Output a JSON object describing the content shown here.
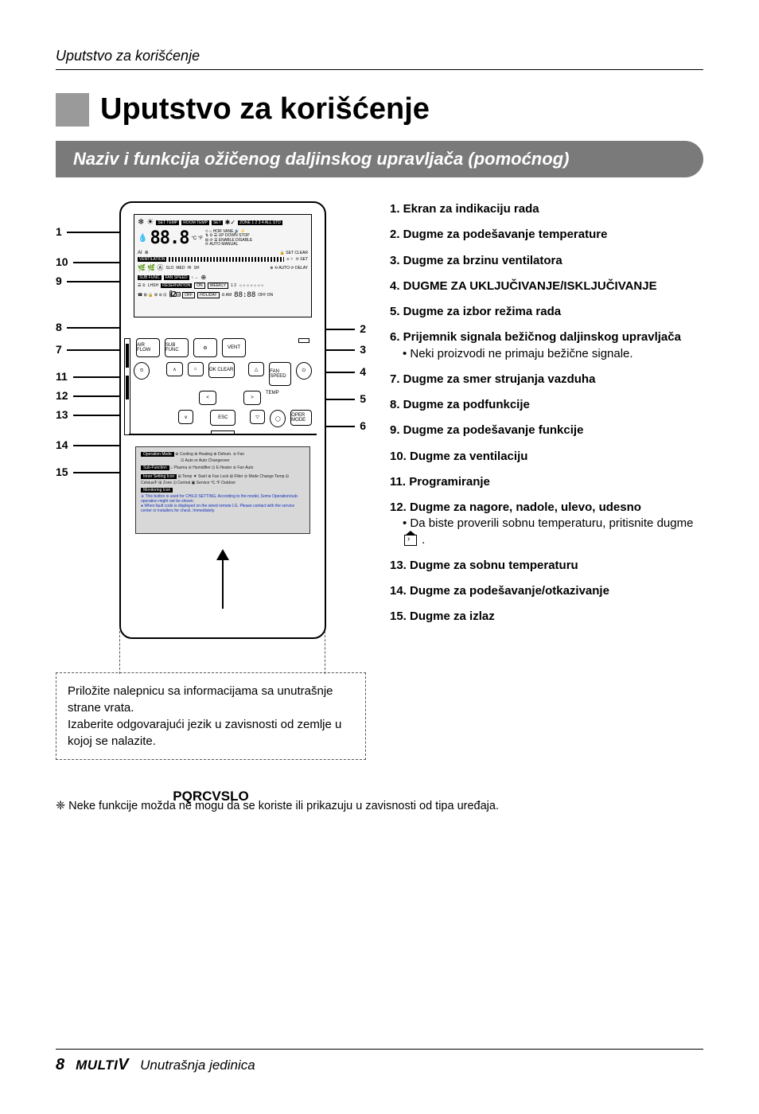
{
  "running_header": "Uputstvo za korišćenje",
  "main_title": "Uputstvo za korišćenje",
  "subtitle": "Naziv i funkcija ožičenog daljinskog upravljača (pomoćnog)",
  "callouts": {
    "left": [
      "1",
      "10",
      "9",
      "8",
      "7",
      "11",
      "12",
      "13",
      "14",
      "15"
    ],
    "right": [
      "2",
      "3",
      "4",
      "5",
      "6"
    ]
  },
  "dashed_box": "Priložite nalepnicu sa informacijama sa unutrašnje strane vrata.\nIzaberite odgovarajući jezik u zavisnosti od zemlje u kojoj se nalazite.",
  "model": "PQRCVSLO",
  "lcd": {
    "chips": [
      "SET TEMP",
      "ROOM TEMP",
      "SET"
    ],
    "zone": "ZONE 1 2 3 4 ALL STD",
    "right_labels": [
      "HOR VANE",
      "UP DOWN STOP",
      "ENABLE DISABLE",
      "AUTO MANUAL",
      "SET CLEAR",
      "SET",
      "AUTO",
      "DELAY"
    ],
    "vent_row": [
      "VENTILATION",
      "SLO",
      "MED",
      "HI",
      "SH"
    ],
    "fan_row": [
      "SUB FUNC",
      "FAN SPEED",
      "LHSH",
      "RESERVATION"
    ],
    "bottom_row": [
      "ON",
      "WEEKLY",
      "1 2",
      "OFF",
      "HOLIDAY",
      "AM",
      "88:88",
      "OFF ON"
    ],
    "digits": "88.8",
    "cf": "°C °F",
    "ai": "AI"
  },
  "keypad": {
    "row1": [
      "AIR FLOW",
      "SUB FUNC",
      "⚙",
      "VENT"
    ],
    "row2_left": "⏲",
    "row2_arrows": [
      "∧",
      "⌂",
      "OK CLEAR"
    ],
    "row2_right": [
      "△",
      "FAN SPEED",
      "⏻"
    ],
    "row3": [
      "<",
      ">",
      "TEMP"
    ],
    "row4": [
      "∨",
      "ESC",
      "▽",
      "◯",
      "OPER MODE"
    ]
  },
  "info_panel": {
    "h1": "Operation Mode",
    "h2": "Sub-Function",
    "h3": "Inner Setting Icon",
    "h4": "Monitoring Icon",
    "line1": "⊕ Cooling  ⊕ Heating  ⊕ Dehum.  ⊖ Fan",
    "line2": "☑ Auto or Auto Changeover",
    "line3": "⌂ Plasma  ⊘ Humidifier  ⊡ E.Heater  ⊘ Fan Auto",
    "small": "⊞ Temp  ▼ Swirl  ⊕ Fan Lock  ⊞ Filter  ⊘ Mode Change Temp  ⊟ Celsius/F  ⊞ Zone  ⊡ Central  ▣ Service  ℃.℉ Outdoor",
    "blue1": "※ This button is used for CHILD SETTING. According to the model, Some Operation/sub-operation might not be shown.",
    "blue2": "● When fault code is displayed on the wired remote LG. Please contact with the service center or installers for check. Immediately."
  },
  "items": [
    {
      "n": "1.",
      "t": "Ekran za indikaciju rada"
    },
    {
      "n": "2.",
      "t": "Dugme za podešavanje temperature"
    },
    {
      "n": "3.",
      "t": "Dugme za brzinu ventilatora"
    },
    {
      "n": "4.",
      "t": "DUGME ZA UKLJUČIVANJE/ISKLJUČIVANJE"
    },
    {
      "n": "5.",
      "t": "Dugme za izbor režima rada"
    },
    {
      "n": "6.",
      "t": "Prijemnik signala bežičnog daljinskog upravljača",
      "sub": "Neki proizvodi ne primaju bežične signale."
    },
    {
      "n": "7.",
      "t": "Dugme za smer strujanja vazduha"
    },
    {
      "n": "8.",
      "t": "Dugme za podfunkcije"
    },
    {
      "n": "9.",
      "t": "Dugme za podešavanje funkcije"
    },
    {
      "n": "10.",
      "t": "Dugme za ventilaciju"
    },
    {
      "n": "11.",
      "t": "Programiranje"
    },
    {
      "n": "12.",
      "t": "Dugme za nagore, nadole, ulevo, udesno",
      "sub": "Da biste proverili sobnu temperaturu, pritisnite dugme",
      "icon": true,
      "tail": "."
    },
    {
      "n": "13.",
      "t": "Dugme za sobnu temperaturu"
    },
    {
      "n": "14.",
      "t": "Dugme za podešavanje/otkazivanje"
    },
    {
      "n": "15.",
      "t": "Dugme za izlaz"
    }
  ],
  "footnote": "❈ Neke funkcije možda ne mogu da se koriste ili prikazuju u zavisnosti od tipa uređaja.",
  "footer": {
    "page": "8",
    "brand": "MULTI",
    "brand_v": "V",
    "section": "Unutrašnja jedinica"
  }
}
